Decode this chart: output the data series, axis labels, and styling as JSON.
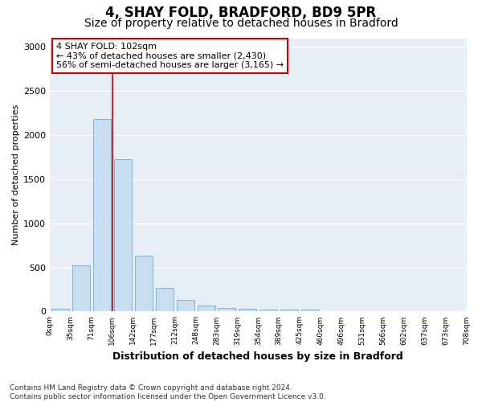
{
  "title1": "4, SHAY FOLD, BRADFORD, BD9 5PR",
  "title2": "Size of property relative to detached houses in Bradford",
  "xlabel": "Distribution of detached houses by size in Bradford",
  "ylabel": "Number of detached properties",
  "footnote": "Contains HM Land Registry data © Crown copyright and database right 2024.\nContains public sector information licensed under the Open Government Licence v3.0.",
  "bin_labels": [
    "0sqm",
    "35sqm",
    "71sqm",
    "106sqm",
    "142sqm",
    "177sqm",
    "212sqm",
    "248sqm",
    "283sqm",
    "319sqm",
    "354sqm",
    "389sqm",
    "425sqm",
    "460sqm",
    "496sqm",
    "531sqm",
    "566sqm",
    "602sqm",
    "637sqm",
    "673sqm",
    "708sqm"
  ],
  "bar_heights": [
    30,
    520,
    2180,
    1730,
    635,
    265,
    135,
    70,
    40,
    30,
    25,
    20,
    18,
    5,
    5,
    0,
    0,
    0,
    0,
    0
  ],
  "bar_color": "#c8ddef",
  "bar_edgecolor": "#8ab0cc",
  "vline_x_idx": 3,
  "vline_color": "#cc0000",
  "annotation_text": "4 SHAY FOLD: 102sqm\n← 43% of detached houses are smaller (2,430)\n56% of semi-detached houses are larger (3,165) →",
  "annotation_box_facecolor": "white",
  "annotation_box_edgecolor": "#cc0000",
  "ylim": [
    0,
    3100
  ],
  "yticks": [
    0,
    500,
    1000,
    1500,
    2000,
    2500,
    3000
  ],
  "bg_color": "#ffffff",
  "plot_bg_color": "#e8eef5",
  "title1_fontsize": 12,
  "title2_fontsize": 10,
  "ylabel_fontsize": 8,
  "xlabel_fontsize": 9,
  "footnote_fontsize": 6.5
}
